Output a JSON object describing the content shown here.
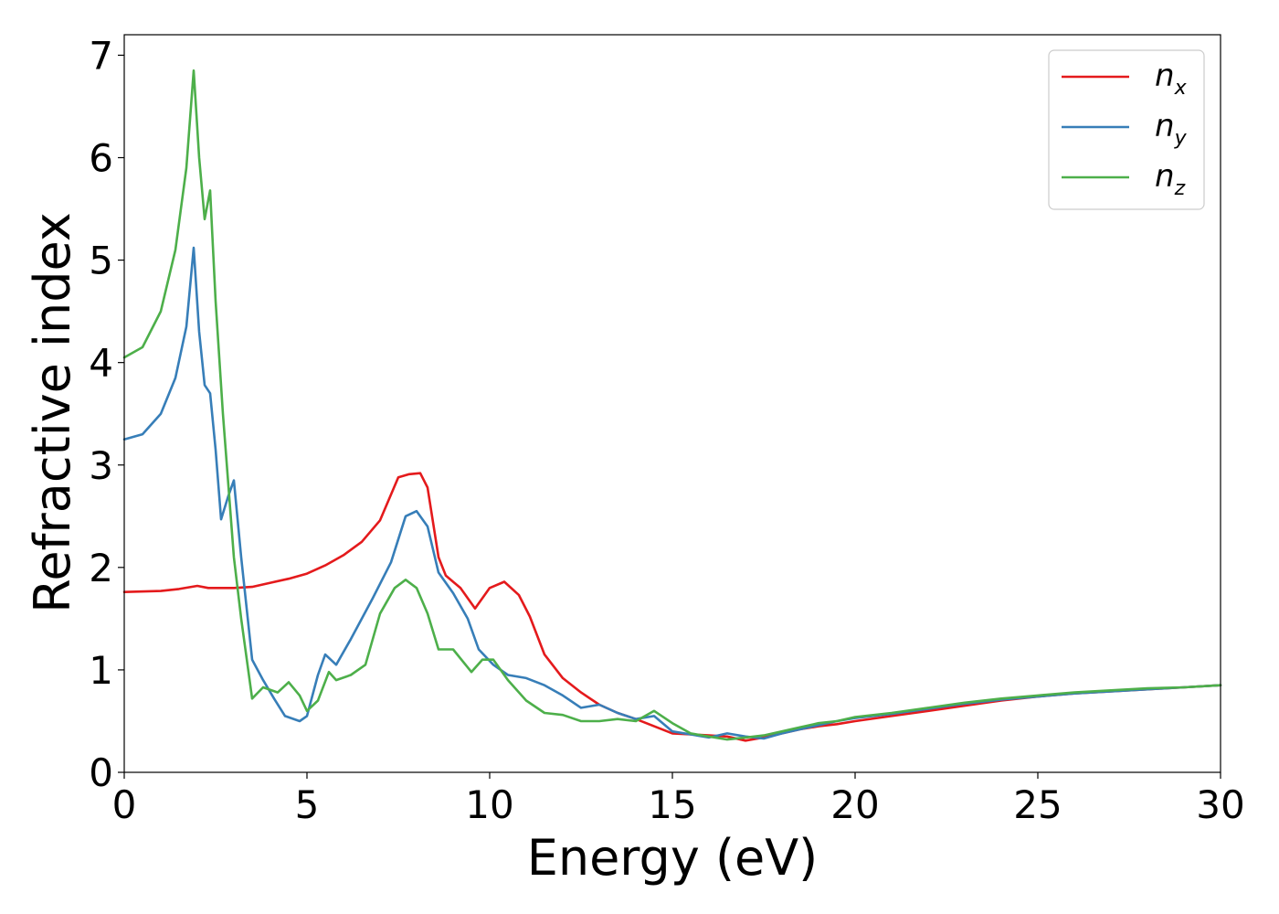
{
  "chart_data": {
    "type": "line",
    "title": "",
    "xlabel": "Energy (eV)",
    "ylabel": "Refractive index",
    "xlim": [
      0,
      30
    ],
    "ylim": [
      0,
      7.2
    ],
    "xticks": [
      0,
      5,
      10,
      15,
      20,
      25,
      30
    ],
    "yticks": [
      0,
      1,
      2,
      3,
      4,
      5,
      6,
      7
    ],
    "grid": false,
    "legend_position": "top-right",
    "series": [
      {
        "name": "n",
        "name_subscript": "x",
        "color": "#e41a1c",
        "points": [
          [
            0,
            1.76
          ],
          [
            1,
            1.77
          ],
          [
            1.5,
            1.79
          ],
          [
            2,
            1.82
          ],
          [
            2.3,
            1.8
          ],
          [
            3,
            1.8
          ],
          [
            3.5,
            1.81
          ],
          [
            4,
            1.85
          ],
          [
            4.5,
            1.89
          ],
          [
            5,
            1.94
          ],
          [
            5.5,
            2.02
          ],
          [
            6,
            2.12
          ],
          [
            6.5,
            2.25
          ],
          [
            7,
            2.46
          ],
          [
            7.5,
            2.88
          ],
          [
            7.8,
            2.91
          ],
          [
            8.1,
            2.92
          ],
          [
            8.3,
            2.78
          ],
          [
            8.6,
            2.1
          ],
          [
            8.8,
            1.92
          ],
          [
            9.2,
            1.8
          ],
          [
            9.6,
            1.6
          ],
          [
            10,
            1.8
          ],
          [
            10.4,
            1.86
          ],
          [
            10.8,
            1.73
          ],
          [
            11.1,
            1.52
          ],
          [
            11.5,
            1.15
          ],
          [
            12,
            0.92
          ],
          [
            12.5,
            0.78
          ],
          [
            13,
            0.66
          ],
          [
            13.5,
            0.58
          ],
          [
            14,
            0.52
          ],
          [
            14.5,
            0.45
          ],
          [
            15,
            0.38
          ],
          [
            15.5,
            0.37
          ],
          [
            16,
            0.36
          ],
          [
            16.5,
            0.35
          ],
          [
            17,
            0.31
          ],
          [
            17.5,
            0.34
          ],
          [
            18,
            0.38
          ],
          [
            18.5,
            0.42
          ],
          [
            19,
            0.45
          ],
          [
            19.5,
            0.47
          ],
          [
            20,
            0.5
          ],
          [
            21,
            0.55
          ],
          [
            22,
            0.6
          ],
          [
            23,
            0.65
          ],
          [
            24,
            0.7
          ],
          [
            25,
            0.74
          ],
          [
            26,
            0.77
          ],
          [
            27,
            0.79
          ],
          [
            28,
            0.81
          ],
          [
            29,
            0.83
          ],
          [
            30,
            0.85
          ]
        ]
      },
      {
        "name": "n",
        "name_subscript": "y",
        "color": "#377eb8",
        "points": [
          [
            0,
            3.25
          ],
          [
            0.5,
            3.3
          ],
          [
            1,
            3.5
          ],
          [
            1.4,
            3.85
          ],
          [
            1.7,
            4.35
          ],
          [
            1.9,
            5.12
          ],
          [
            2.05,
            4.3
          ],
          [
            2.2,
            3.78
          ],
          [
            2.35,
            3.7
          ],
          [
            2.5,
            3.15
          ],
          [
            2.65,
            2.47
          ],
          [
            2.85,
            2.7
          ],
          [
            3.0,
            2.85
          ],
          [
            3.2,
            2.1
          ],
          [
            3.5,
            1.1
          ],
          [
            3.8,
            0.9
          ],
          [
            4.1,
            0.72
          ],
          [
            4.4,
            0.55
          ],
          [
            4.8,
            0.5
          ],
          [
            5.0,
            0.55
          ],
          [
            5.3,
            0.95
          ],
          [
            5.5,
            1.15
          ],
          [
            5.8,
            1.05
          ],
          [
            6.2,
            1.3
          ],
          [
            6.8,
            1.7
          ],
          [
            7.3,
            2.05
          ],
          [
            7.7,
            2.5
          ],
          [
            8.0,
            2.55
          ],
          [
            8.3,
            2.4
          ],
          [
            8.6,
            1.95
          ],
          [
            9.0,
            1.75
          ],
          [
            9.4,
            1.5
          ],
          [
            9.7,
            1.2
          ],
          [
            10.1,
            1.05
          ],
          [
            10.5,
            0.95
          ],
          [
            11,
            0.92
          ],
          [
            11.5,
            0.85
          ],
          [
            12,
            0.75
          ],
          [
            12.5,
            0.63
          ],
          [
            13,
            0.66
          ],
          [
            13.5,
            0.58
          ],
          [
            14,
            0.52
          ],
          [
            14.5,
            0.55
          ],
          [
            15,
            0.4
          ],
          [
            15.5,
            0.37
          ],
          [
            16,
            0.34
          ],
          [
            16.5,
            0.38
          ],
          [
            17,
            0.35
          ],
          [
            17.5,
            0.33
          ],
          [
            18,
            0.38
          ],
          [
            18.5,
            0.42
          ],
          [
            19,
            0.46
          ],
          [
            19.5,
            0.5
          ],
          [
            20,
            0.53
          ],
          [
            21,
            0.57
          ],
          [
            22,
            0.62
          ],
          [
            23,
            0.67
          ],
          [
            24,
            0.71
          ],
          [
            25,
            0.74
          ],
          [
            26,
            0.77
          ],
          [
            27,
            0.79
          ],
          [
            28,
            0.81
          ],
          [
            29,
            0.83
          ],
          [
            30,
            0.85
          ]
        ]
      },
      {
        "name": "n",
        "name_subscript": "z",
        "color": "#4daf4a",
        "points": [
          [
            0,
            4.05
          ],
          [
            0.5,
            4.15
          ],
          [
            1,
            4.5
          ],
          [
            1.4,
            5.1
          ],
          [
            1.7,
            5.9
          ],
          [
            1.9,
            6.85
          ],
          [
            2.05,
            6.0
          ],
          [
            2.2,
            5.4
          ],
          [
            2.35,
            5.68
          ],
          [
            2.5,
            4.6
          ],
          [
            2.7,
            3.5
          ],
          [
            3.0,
            2.1
          ],
          [
            3.2,
            1.5
          ],
          [
            3.5,
            0.72
          ],
          [
            3.8,
            0.83
          ],
          [
            4.2,
            0.78
          ],
          [
            4.5,
            0.88
          ],
          [
            4.8,
            0.75
          ],
          [
            5.0,
            0.6
          ],
          [
            5.3,
            0.7
          ],
          [
            5.6,
            0.98
          ],
          [
            5.8,
            0.9
          ],
          [
            6.2,
            0.95
          ],
          [
            6.6,
            1.05
          ],
          [
            7.0,
            1.55
          ],
          [
            7.4,
            1.8
          ],
          [
            7.7,
            1.88
          ],
          [
            8.0,
            1.8
          ],
          [
            8.3,
            1.55
          ],
          [
            8.6,
            1.2
          ],
          [
            9.0,
            1.2
          ],
          [
            9.5,
            0.98
          ],
          [
            9.8,
            1.1
          ],
          [
            10.1,
            1.1
          ],
          [
            10.5,
            0.9
          ],
          [
            11,
            0.7
          ],
          [
            11.5,
            0.58
          ],
          [
            12,
            0.56
          ],
          [
            12.5,
            0.5
          ],
          [
            13,
            0.5
          ],
          [
            13.5,
            0.52
          ],
          [
            14,
            0.5
          ],
          [
            14.5,
            0.6
          ],
          [
            15,
            0.48
          ],
          [
            15.5,
            0.38
          ],
          [
            16,
            0.35
          ],
          [
            16.5,
            0.32
          ],
          [
            17,
            0.34
          ],
          [
            17.5,
            0.36
          ],
          [
            18,
            0.4
          ],
          [
            18.5,
            0.44
          ],
          [
            19,
            0.48
          ],
          [
            19.5,
            0.5
          ],
          [
            20,
            0.54
          ],
          [
            21,
            0.58
          ],
          [
            22,
            0.63
          ],
          [
            23,
            0.68
          ],
          [
            24,
            0.72
          ],
          [
            25,
            0.75
          ],
          [
            26,
            0.78
          ],
          [
            27,
            0.8
          ],
          [
            28,
            0.82
          ],
          [
            29,
            0.83
          ],
          [
            30,
            0.85
          ]
        ]
      }
    ]
  }
}
